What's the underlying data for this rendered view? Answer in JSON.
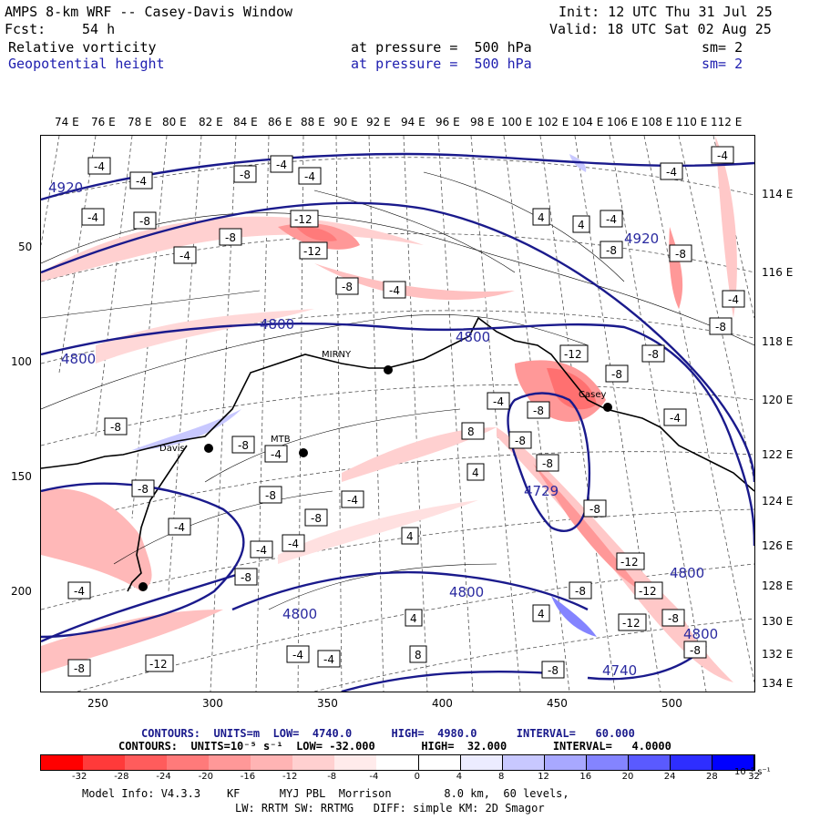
{
  "header": {
    "title": "AMPS 8-km WRF -- Casey-Davis Window",
    "init": "Init: 12 UTC Thu 31 Jul 25",
    "fcst_label": "Fcst:",
    "fcst_value": "54 h",
    "valid": "Valid: 18 UTC Sat 02 Aug 25",
    "field1": "Relative vorticity",
    "field1_level": "at pressure =  500 hPa",
    "field1_sm": "sm= 2",
    "field2": "Geopotential height",
    "field2_level": "at pressure =  500 hPa",
    "field2_sm": "sm= 2"
  },
  "axes": {
    "top_lon": [
      "74 E",
      "76 E",
      "78 E",
      "80 E",
      "82 E",
      "84 E",
      "86 E",
      "88 E",
      "90 E",
      "92 E",
      "94 E",
      "96 E",
      "98 E",
      "100 E",
      "102 E",
      "104 E",
      "106 E",
      "108 E",
      "110 E",
      "112 E"
    ],
    "right_lon": [
      "114 E",
      "116 E",
      "118 E",
      "120 E",
      "122 E",
      "124 E",
      "126 E",
      "128 E",
      "130 E",
      "132 E",
      "134 E"
    ],
    "left_y": [
      "50",
      "100",
      "150",
      "200"
    ],
    "bottom_x": [
      "250",
      "300",
      "350",
      "400",
      "450",
      "500"
    ]
  },
  "map": {
    "stations": [
      "Davis",
      "MTB",
      "MIRNY",
      "Casey"
    ],
    "height_labels": [
      "4920",
      "4920",
      "4800",
      "4800",
      "4800",
      "4800",
      "4800",
      "4800",
      "4729",
      "4800",
      "4740"
    ],
    "vort_labels": [
      "-4",
      "-8",
      "-12",
      "4",
      "8"
    ]
  },
  "contour_info": {
    "line1": "CONTOURS:  UNITS=m  LOW=  4740.0      HIGH=  4980.0      INTERVAL=   60.000",
    "line2": "CONTOURS:  UNITS=10⁻⁵ s⁻¹  LOW= -32.000       HIGH=  32.000       INTERVAL=   4.0000"
  },
  "colorbar": {
    "labels": [
      "-32",
      "-28",
      "-24",
      "-20",
      "-16",
      "-12",
      "-8",
      "-4",
      "0",
      "4",
      "8",
      "12",
      "16",
      "20",
      "24",
      "28",
      "32"
    ],
    "units": "10⁻⁵ s⁻¹",
    "colors": [
      "#ff0000",
      "#ff3a3a",
      "#ff5c5c",
      "#ff7a7a",
      "#ff9898",
      "#ffb4b4",
      "#ffd0d0",
      "#ffebeb",
      "#ffffff",
      "#ffffff",
      "#ececff",
      "#c8c8ff",
      "#a8a8ff",
      "#8484ff",
      "#5a5aff",
      "#2e2eff",
      "#0000ff"
    ]
  },
  "footer": {
    "line1": "Model Info: V4.3.3    KF      MYJ PBL  Morrison        8.0 km,  60 levels,",
    "line2": "LW: RRTM SW: RRTMG   DIFF: simple KM: 2D Smagor"
  }
}
